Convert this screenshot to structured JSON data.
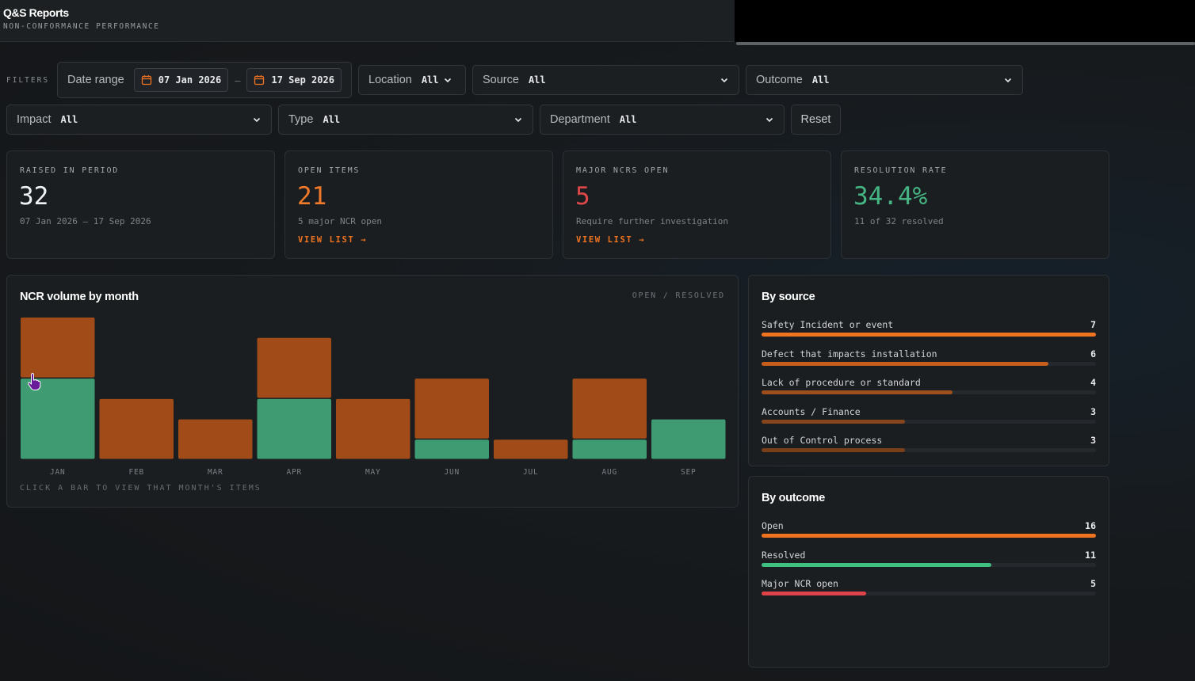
{
  "header": {
    "title": "Q&S Reports",
    "subtitle": "NON-CONFORMANCE PERFORMANCE"
  },
  "filters": {
    "label": "FILTERS",
    "date_range": {
      "label": "Date range",
      "start": "07 Jan 2026",
      "separator": "–",
      "end": "17 Sep 2026",
      "icon": "calendar-icon"
    },
    "location": {
      "label": "Location",
      "value": "All"
    },
    "source": {
      "label": "Source",
      "value": "All"
    },
    "outcome": {
      "label": "Outcome",
      "value": "All"
    },
    "impact": {
      "label": "Impact",
      "value": "All"
    },
    "type": {
      "label": "Type",
      "value": "All"
    },
    "department": {
      "label": "Department",
      "value": "All"
    },
    "reset_label": "Reset"
  },
  "kpis": [
    {
      "label": "RAISED IN PERIOD",
      "value": "32",
      "sub": "07 Jan 2026 – 17 Sep 2026",
      "link": "",
      "color": "#f0f1f2"
    },
    {
      "label": "OPEN ITEMS",
      "value": "21",
      "sub": "5 major NCR open",
      "link": "VIEW LIST →",
      "color": "#f07a2a"
    },
    {
      "label": "MAJOR NCRS OPEN",
      "value": "5",
      "sub": "Require further investigation",
      "link": "VIEW LIST →",
      "color": "#e0474a"
    },
    {
      "label": "RESOLUTION RATE",
      "value": "34.4%",
      "sub": "11 of 32 resolved",
      "link": "",
      "color": "#45b683"
    }
  ],
  "volume": {
    "title": "NCR volume by month",
    "legend": "OPEN / RESOLVED",
    "hint": "CLICK A BAR TO VIEW THAT MONTH'S ITEMS"
  },
  "chart_data": {
    "type": "bar",
    "stacked": true,
    "categories": [
      "JAN",
      "FEB",
      "MAR",
      "APR",
      "MAY",
      "JUN",
      "JUL",
      "AUG",
      "SEP"
    ],
    "series": [
      {
        "name": "RESOLVED",
        "color": "#3f9b72",
        "values": [
          4,
          0,
          0,
          3,
          0,
          1,
          0,
          1,
          2
        ]
      },
      {
        "name": "OPEN",
        "color": "#a14c18",
        "values": [
          3,
          3,
          2,
          3,
          3,
          3,
          1,
          3,
          0
        ]
      }
    ],
    "ylim": [
      0,
      7
    ]
  },
  "by_source": {
    "title": "By source",
    "max": 7,
    "items": [
      {
        "label": "Safety Incident or event",
        "count": 7,
        "color": "#f07320"
      },
      {
        "label": "Defect that impacts installation",
        "count": 6,
        "color": "#c85e1c"
      },
      {
        "label": "Lack of procedure or standard",
        "count": 4,
        "color": "#9e4e1c"
      },
      {
        "label": "Accounts / Finance",
        "count": 3,
        "color": "#86451c"
      },
      {
        "label": "Out of Control process",
        "count": 3,
        "color": "#793f1b"
      }
    ]
  },
  "by_outcome": {
    "title": "By outcome",
    "max": 16,
    "items": [
      {
        "label": "Open",
        "count": 16,
        "color": "#f07320"
      },
      {
        "label": "Resolved",
        "count": 11,
        "color": "#3fbf80"
      },
      {
        "label": "Major NCR open",
        "count": 5,
        "color": "#df4349"
      }
    ]
  },
  "cursor_icon": "hand-pointer-icon"
}
